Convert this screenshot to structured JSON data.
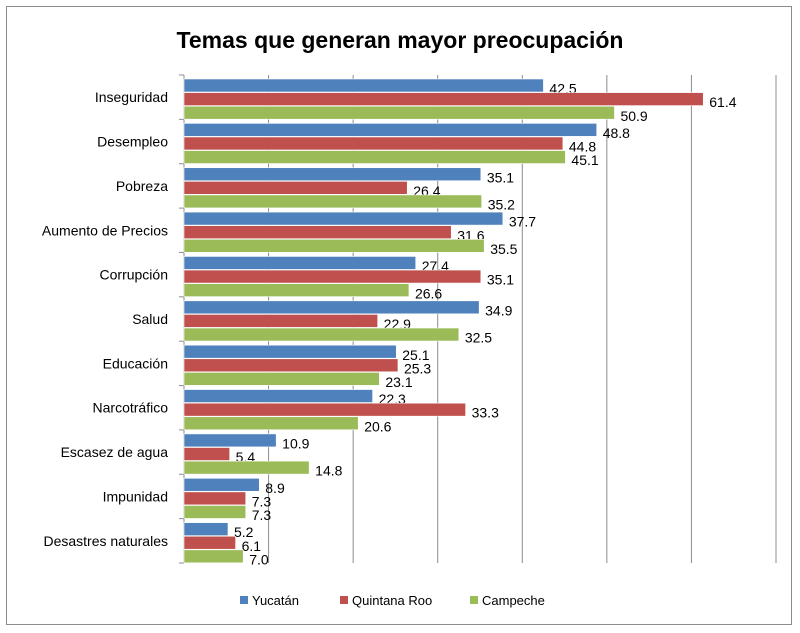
{
  "chart_data": {
    "type": "bar",
    "orientation": "horizontal",
    "title": "Temas que generan mayor preocupación",
    "xlabel": "",
    "ylabel": "",
    "xlim": [
      0,
      70
    ],
    "grid": true,
    "legend_position": "bottom",
    "categories": [
      "Inseguridad",
      "Desempleo",
      "Pobreza",
      "Aumento de Precios",
      "Corrupción",
      "Salud",
      "Educación",
      "Narcotráfico",
      "Escasez de agua",
      "Impunidad",
      "Desastres naturales"
    ],
    "series": [
      {
        "name": "Yucatán",
        "color": "#4f81bd",
        "values": [
          42.5,
          48.8,
          35.1,
          37.7,
          27.4,
          34.9,
          25.1,
          22.3,
          10.9,
          8.9,
          5.2
        ],
        "labels": [
          "42.5",
          "48.8",
          "35.1",
          "37.7",
          "27.4",
          "34.9",
          "25.1",
          "22.3",
          "10.9",
          "8.9",
          "5.2"
        ]
      },
      {
        "name": "Quintana Roo",
        "color": "#c0504d",
        "values": [
          61.4,
          44.8,
          26.4,
          31.6,
          35.1,
          22.9,
          25.3,
          33.3,
          5.4,
          7.3,
          6.1
        ],
        "labels": [
          "61.4",
          "44.8",
          "26.4",
          "31.6",
          "35.1",
          "22.9",
          "25.3",
          "33.3",
          "5.4",
          "7.3",
          "6.1"
        ]
      },
      {
        "name": "Campeche",
        "color": "#9bbb59",
        "values": [
          50.9,
          45.1,
          35.2,
          35.5,
          26.6,
          32.5,
          23.1,
          20.6,
          14.8,
          7.3,
          7.0
        ],
        "labels": [
          "50.9",
          "45.1",
          "35.2",
          "35.5",
          "26.6",
          "32.5",
          "23.1",
          "20.6",
          "14.8",
          "7.3",
          "7.0"
        ]
      }
    ]
  }
}
